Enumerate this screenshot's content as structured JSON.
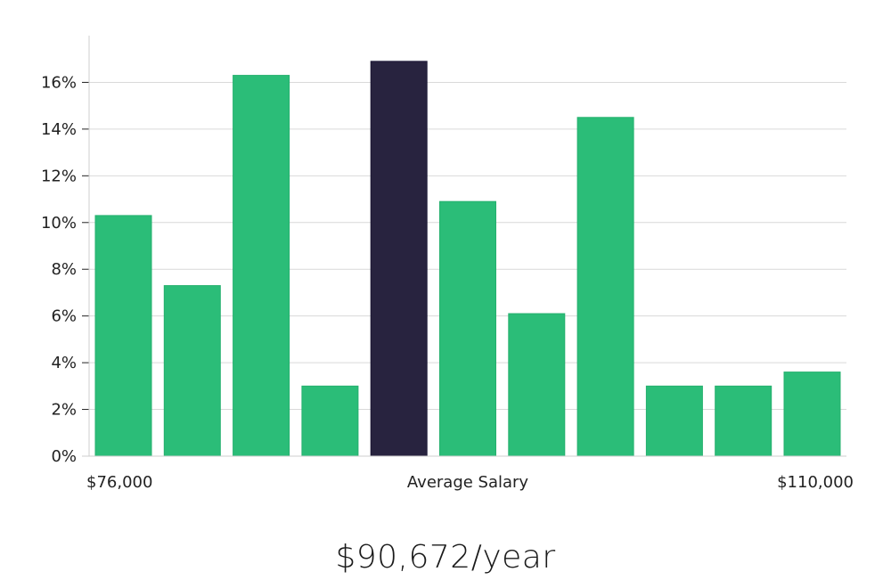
{
  "chart_data": {
    "type": "bar",
    "title": "",
    "xlabel": "Average Salary",
    "ylabel": "",
    "x_range_labels": {
      "min": "$76,000",
      "max": "$110,000"
    },
    "values": [
      10.3,
      7.3,
      16.3,
      3.0,
      16.9,
      10.9,
      6.1,
      14.5,
      3.0,
      3.0,
      3.6
    ],
    "highlight_index": 4,
    "ylim": [
      0,
      18
    ],
    "yticks": [
      0,
      2,
      4,
      6,
      8,
      10,
      12,
      14,
      16
    ],
    "ytick_suffix": "%",
    "grid": true,
    "colors": {
      "bar": "#2bbd78",
      "highlight": "#28233f",
      "grid": "#d9d9d9",
      "axis": "#cfcfcf"
    }
  },
  "summary": {
    "salary": "$90,672/year"
  }
}
